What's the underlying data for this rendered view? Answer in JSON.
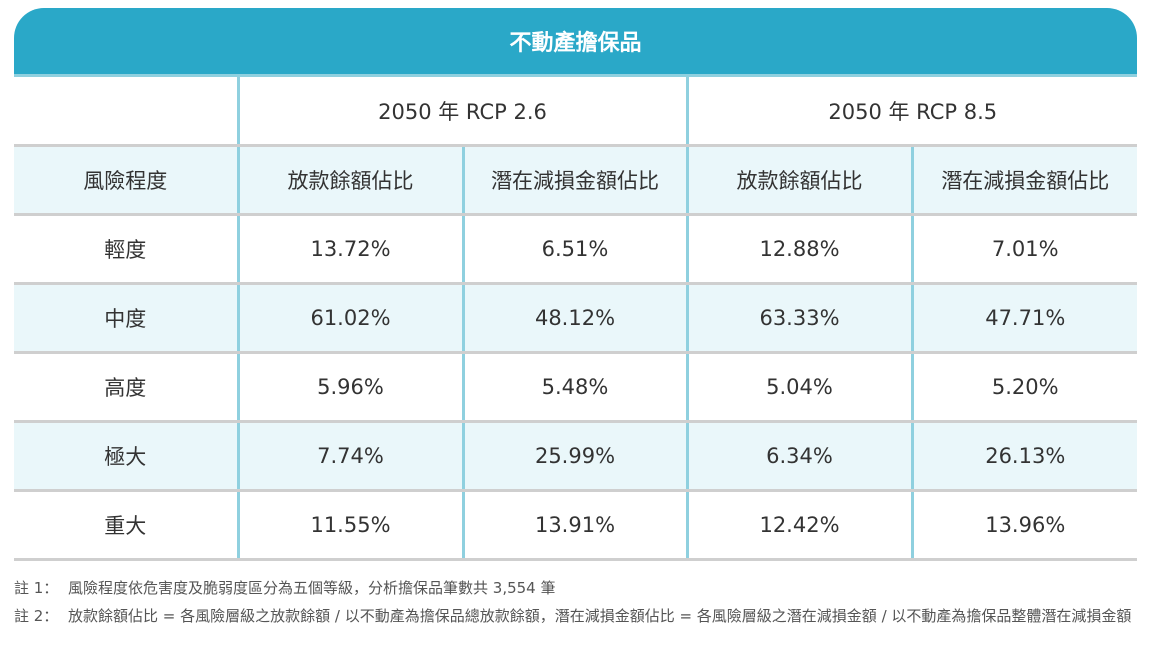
{
  "table": {
    "title": "不動產擔保品",
    "scenarios": [
      "2050 年 RCP 2.6",
      "2050 年 RCP 8.5"
    ],
    "header": {
      "risk_level": "風險程度",
      "loan_share": "放款餘額佔比",
      "loss_share": "潛在減損金額佔比"
    },
    "rows": [
      {
        "level": "輕度",
        "rcp26_loan": "13.72%",
        "rcp26_loss": "6.51%",
        "rcp85_loan": "12.88%",
        "rcp85_loss": "7.01%"
      },
      {
        "level": "中度",
        "rcp26_loan": "61.02%",
        "rcp26_loss": "48.12%",
        "rcp85_loan": "63.33%",
        "rcp85_loss": "47.71%"
      },
      {
        "level": "高度",
        "rcp26_loan": "5.96%",
        "rcp26_loss": "5.48%",
        "rcp85_loan": "5.04%",
        "rcp85_loss": "5.20%"
      },
      {
        "level": "極大",
        "rcp26_loan": "7.74%",
        "rcp26_loss": "25.99%",
        "rcp85_loan": "6.34%",
        "rcp85_loss": "26.13%"
      },
      {
        "level": "重大",
        "rcp26_loan": "11.55%",
        "rcp26_loss": "13.91%",
        "rcp85_loan": "12.42%",
        "rcp85_loss": "13.96%"
      }
    ]
  },
  "notes": [
    {
      "label": "註 1：",
      "text": "風險程度依危害度及脆弱度區分為五個等級，分析擔保品筆數共 3,554 筆"
    },
    {
      "label": "註 2：",
      "text": "放款餘額佔比 = 各風險層級之放款餘額 / 以不動產為擔保品總放款餘額，潛在減損金額佔比 = 各風險層級之潛在減損金額 / 以不動產為擔保品整體潛在減損金額"
    }
  ]
}
